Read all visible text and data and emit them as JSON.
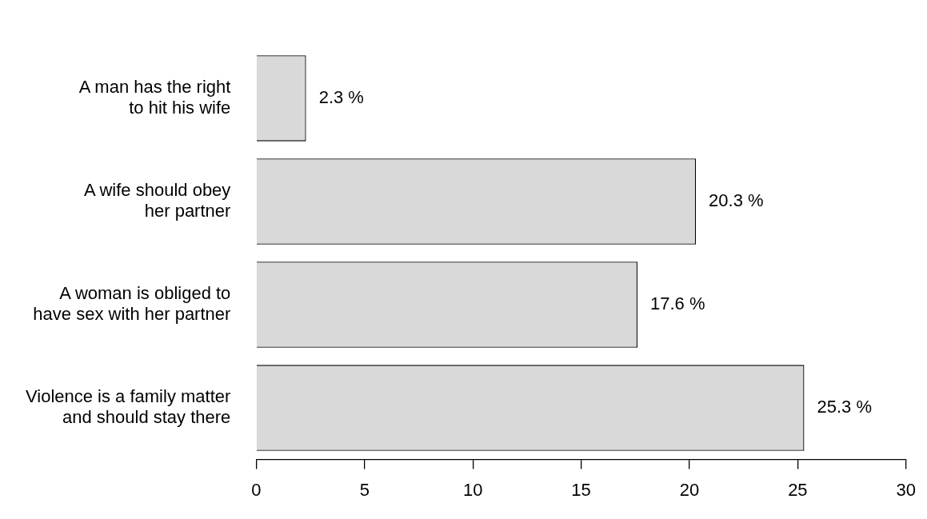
{
  "chart_data": {
    "type": "bar",
    "orientation": "horizontal",
    "categories": [
      "A man has the right\nto hit his wife",
      "A wife should obey\nher partner",
      "A woman is obliged to\nhave sex with her partner",
      "Violence is a family matter\nand should stay there"
    ],
    "values": [
      2.3,
      20.3,
      17.6,
      25.3
    ],
    "value_labels": [
      "2.3 %",
      "20.3 %",
      "17.6 %",
      "25.3 %"
    ],
    "color": "#d9d9d9",
    "xlim": [
      0,
      30
    ],
    "xticks": [
      0,
      5,
      10,
      15,
      20,
      25,
      30
    ],
    "grid": false,
    "legend": false
  }
}
